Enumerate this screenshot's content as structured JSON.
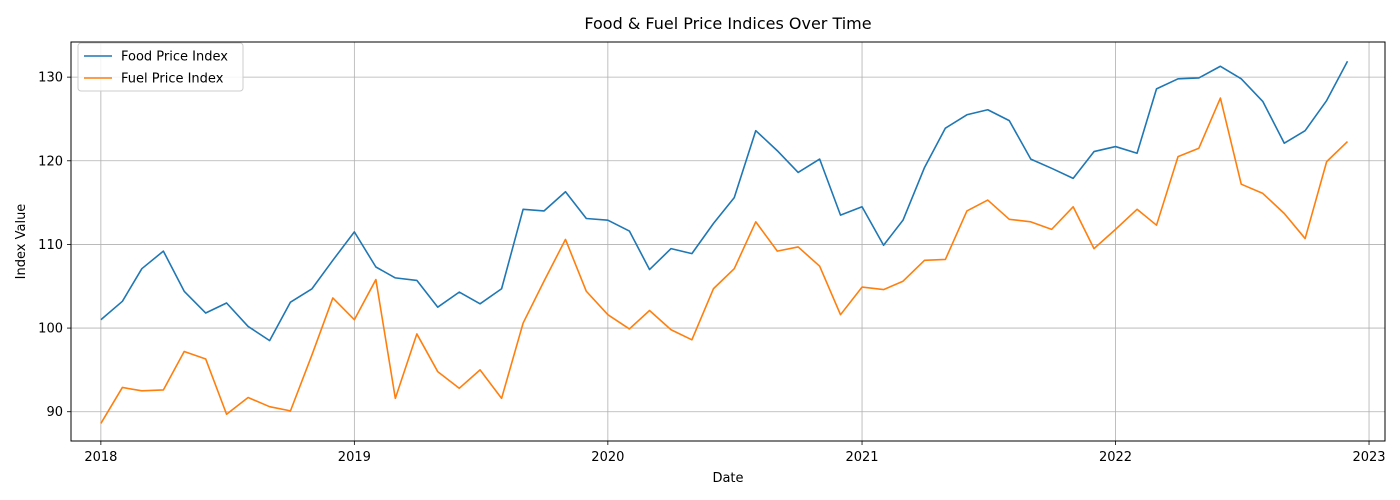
{
  "chart_data": {
    "type": "line",
    "title": "Food & Fuel Price Indices Over Time",
    "xlabel": "Date",
    "ylabel": "Index Value",
    "x_start": "2018-01",
    "x_ticks": [
      "2018",
      "2019",
      "2020",
      "2021",
      "2022",
      "2023"
    ],
    "y_ticks": [
      90,
      100,
      110,
      120,
      130
    ],
    "ylim": [
      86.5,
      134.2
    ],
    "xlim": [
      "2017-11-19",
      "2023-01-24"
    ],
    "grid": true,
    "legend_position": "top-left",
    "series": [
      {
        "name": "Food Price Index",
        "color": "#1f77b4",
        "values": [
          101.0,
          103.2,
          107.1,
          109.2,
          104.4,
          101.8,
          103.0,
          100.2,
          98.5,
          103.1,
          104.7,
          108.1,
          111.5,
          107.3,
          106.0,
          105.7,
          102.5,
          104.3,
          102.9,
          104.7,
          114.2,
          114.0,
          116.3,
          113.1,
          112.9,
          111.6,
          107.0,
          109.5,
          108.9,
          112.5,
          115.6,
          123.6,
          121.2,
          118.6,
          120.2,
          113.5,
          114.5,
          109.9,
          112.9,
          119.2,
          123.9,
          125.5,
          126.1,
          124.8,
          120.2,
          119.1,
          117.9,
          121.1,
          121.7,
          120.9,
          128.6,
          129.8,
          129.9,
          131.3,
          129.8,
          127.1,
          122.1,
          123.6,
          127.2,
          131.9
        ]
      },
      {
        "name": "Fuel Price Index",
        "color": "#ff7f0e",
        "values": [
          88.6,
          92.9,
          92.5,
          92.6,
          97.2,
          96.3,
          89.7,
          91.7,
          90.6,
          90.1,
          96.8,
          103.6,
          101.0,
          105.8,
          91.6,
          99.3,
          94.8,
          92.8,
          95.0,
          91.6,
          100.6,
          105.6,
          110.6,
          104.4,
          101.6,
          99.9,
          102.1,
          99.8,
          98.6,
          104.7,
          107.1,
          112.7,
          109.2,
          109.7,
          107.4,
          101.6,
          104.9,
          104.6,
          105.6,
          108.1,
          108.2,
          114.0,
          115.3,
          113.0,
          112.7,
          111.8,
          114.5,
          109.5,
          111.8,
          114.2,
          112.3,
          120.5,
          121.5,
          127.5,
          117.2,
          116.1,
          113.7,
          110.7,
          119.9,
          122.3
        ]
      }
    ]
  }
}
